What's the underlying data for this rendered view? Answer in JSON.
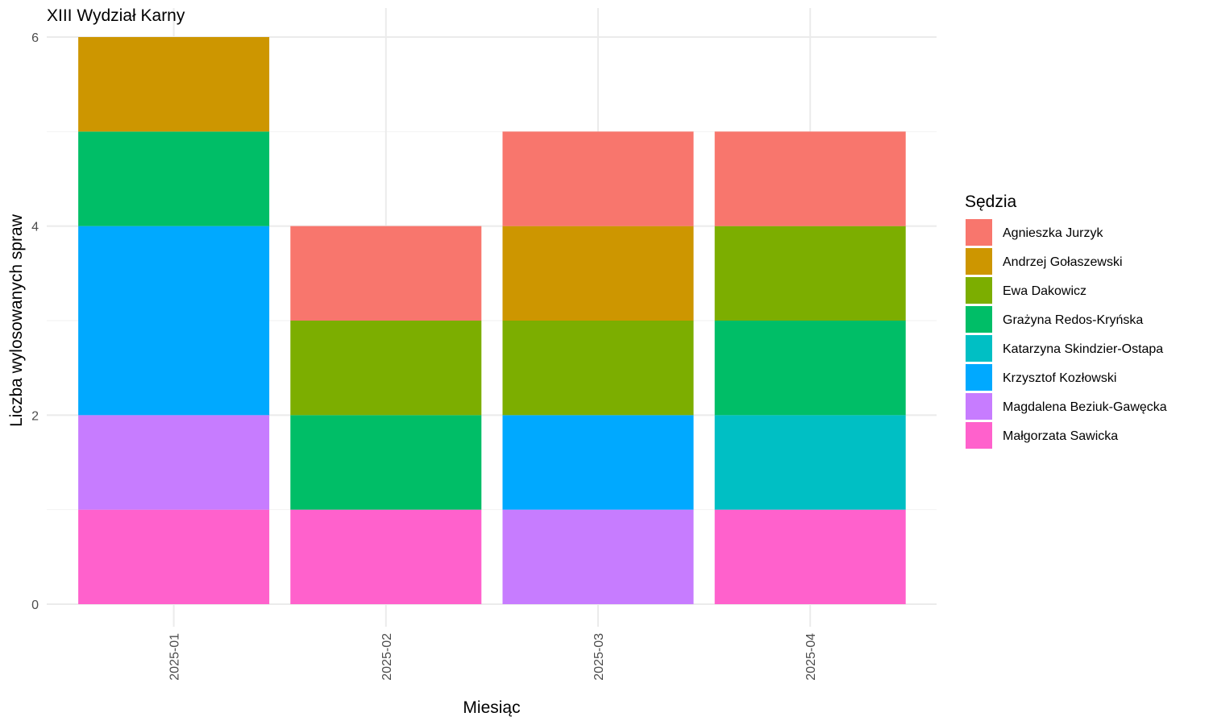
{
  "chart_data": {
    "type": "bar",
    "stacked": true,
    "title": "XIII Wydział Karny",
    "xlabel": "Miesiąc",
    "ylabel": "Liczba wylosowanych spraw",
    "ylim": [
      0,
      6
    ],
    "yticks": [
      0,
      2,
      4,
      6
    ],
    "grid": true,
    "legend_position": "right",
    "legend_title": "Sędzia",
    "categories": [
      "2025-01",
      "2025-02",
      "2025-03",
      "2025-04"
    ],
    "series": [
      {
        "name": "Agnieszka Jurzyk",
        "color": "#F8766D",
        "values": [
          0,
          1,
          1,
          1
        ]
      },
      {
        "name": "Andrzej Gołaszewski",
        "color": "#CD9600",
        "values": [
          1,
          0,
          1,
          0
        ]
      },
      {
        "name": "Ewa Dakowicz",
        "color": "#7CAE00",
        "values": [
          0,
          1,
          1,
          1
        ]
      },
      {
        "name": "Grażyna Redos-Kryńska",
        "color": "#00BE67",
        "values": [
          1,
          1,
          0,
          1
        ]
      },
      {
        "name": "Katarzyna Skindzier-Ostapa",
        "color": "#00BFC4",
        "values": [
          0,
          0,
          0,
          1
        ]
      },
      {
        "name": "Krzysztof Kozłowski",
        "color": "#00A9FF",
        "values": [
          2,
          0,
          1,
          0
        ]
      },
      {
        "name": "Magdalena Beziuk-Gawęcka",
        "color": "#C77CFF",
        "values": [
          1,
          0,
          1,
          0
        ]
      },
      {
        "name": "Małgorzata Sawicka",
        "color": "#FF61CC",
        "values": [
          1,
          1,
          0,
          1
        ]
      }
    ]
  }
}
